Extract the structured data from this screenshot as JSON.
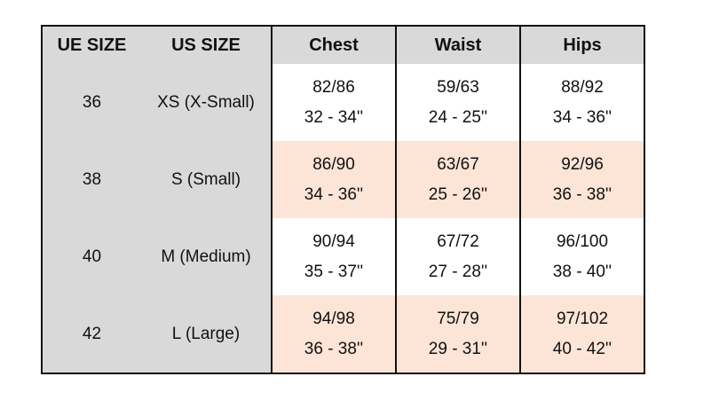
{
  "colors": {
    "header": "#d9d9d9",
    "alt_row": "#fce4d6",
    "row": "#ffffff"
  },
  "headers": [
    "UE SIZE",
    "US SIZE",
    "Chest",
    "Waist",
    "Hips"
  ],
  "rows": [
    {
      "ue": "36",
      "us": "XS (X-Small)",
      "chest": [
        "82/86",
        "32 - 34''"
      ],
      "waist": [
        "59/63",
        "24 - 25''"
      ],
      "hips": [
        "88/92",
        "34 - 36''"
      ]
    },
    {
      "ue": "38",
      "us": "S (Small)",
      "chest": [
        "86/90",
        "34 - 36''"
      ],
      "waist": [
        "63/67",
        "25 - 26''"
      ],
      "hips": [
        "92/96",
        "36 - 38''"
      ]
    },
    {
      "ue": "40",
      "us": "M (Medium)",
      "chest": [
        "90/94",
        "35 - 37''"
      ],
      "waist": [
        "67/72",
        "27 - 28''"
      ],
      "hips": [
        "96/100",
        "38 - 40''"
      ]
    },
    {
      "ue": "42",
      "us": "L (Large)",
      "chest": [
        "94/98",
        "36 - 38''"
      ],
      "waist": [
        "75/79",
        "29 - 31''"
      ],
      "hips": [
        "97/102",
        "40 - 42''"
      ]
    }
  ]
}
